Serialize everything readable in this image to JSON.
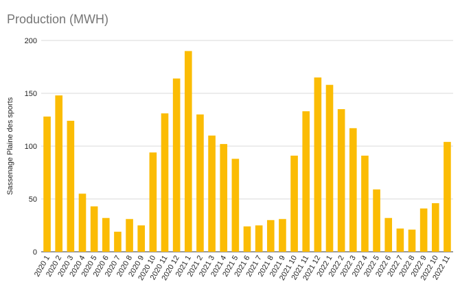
{
  "chart_data": {
    "type": "bar",
    "title": "Production (MWH)",
    "xlabel": "",
    "ylabel": "Sassenage Plaine des sports",
    "ylim": [
      0,
      200
    ],
    "yticks": [
      0,
      50,
      100,
      150,
      200
    ],
    "grid": true,
    "legend": "none",
    "bar_color": "#FBBC04",
    "categories": [
      "2020 1",
      "2020 2",
      "2020 3",
      "2020 4",
      "2020 5",
      "2020 6",
      "2020 7",
      "2020 8",
      "2020 9",
      "2020 10",
      "2020 11",
      "2020 12",
      "2021 1",
      "2021 2",
      "2021 3",
      "2021 4",
      "2021 5",
      "2021 6",
      "2021 7",
      "2021 8",
      "2021 9",
      "2021 10",
      "2021 11",
      "2021 12",
      "2022 1",
      "2022 2",
      "2022 3",
      "2022 4",
      "2022 5",
      "2022 6",
      "2022 7",
      "2022 8",
      "2022 9",
      "2022 10",
      "2022 11"
    ],
    "values": [
      128,
      148,
      124,
      55,
      43,
      32,
      19,
      31,
      25,
      94,
      131,
      164,
      190,
      130,
      110,
      102,
      88,
      24,
      25,
      30,
      31,
      91,
      133,
      165,
      158,
      135,
      117,
      91,
      59,
      32,
      22,
      21,
      41,
      46,
      104
    ]
  }
}
